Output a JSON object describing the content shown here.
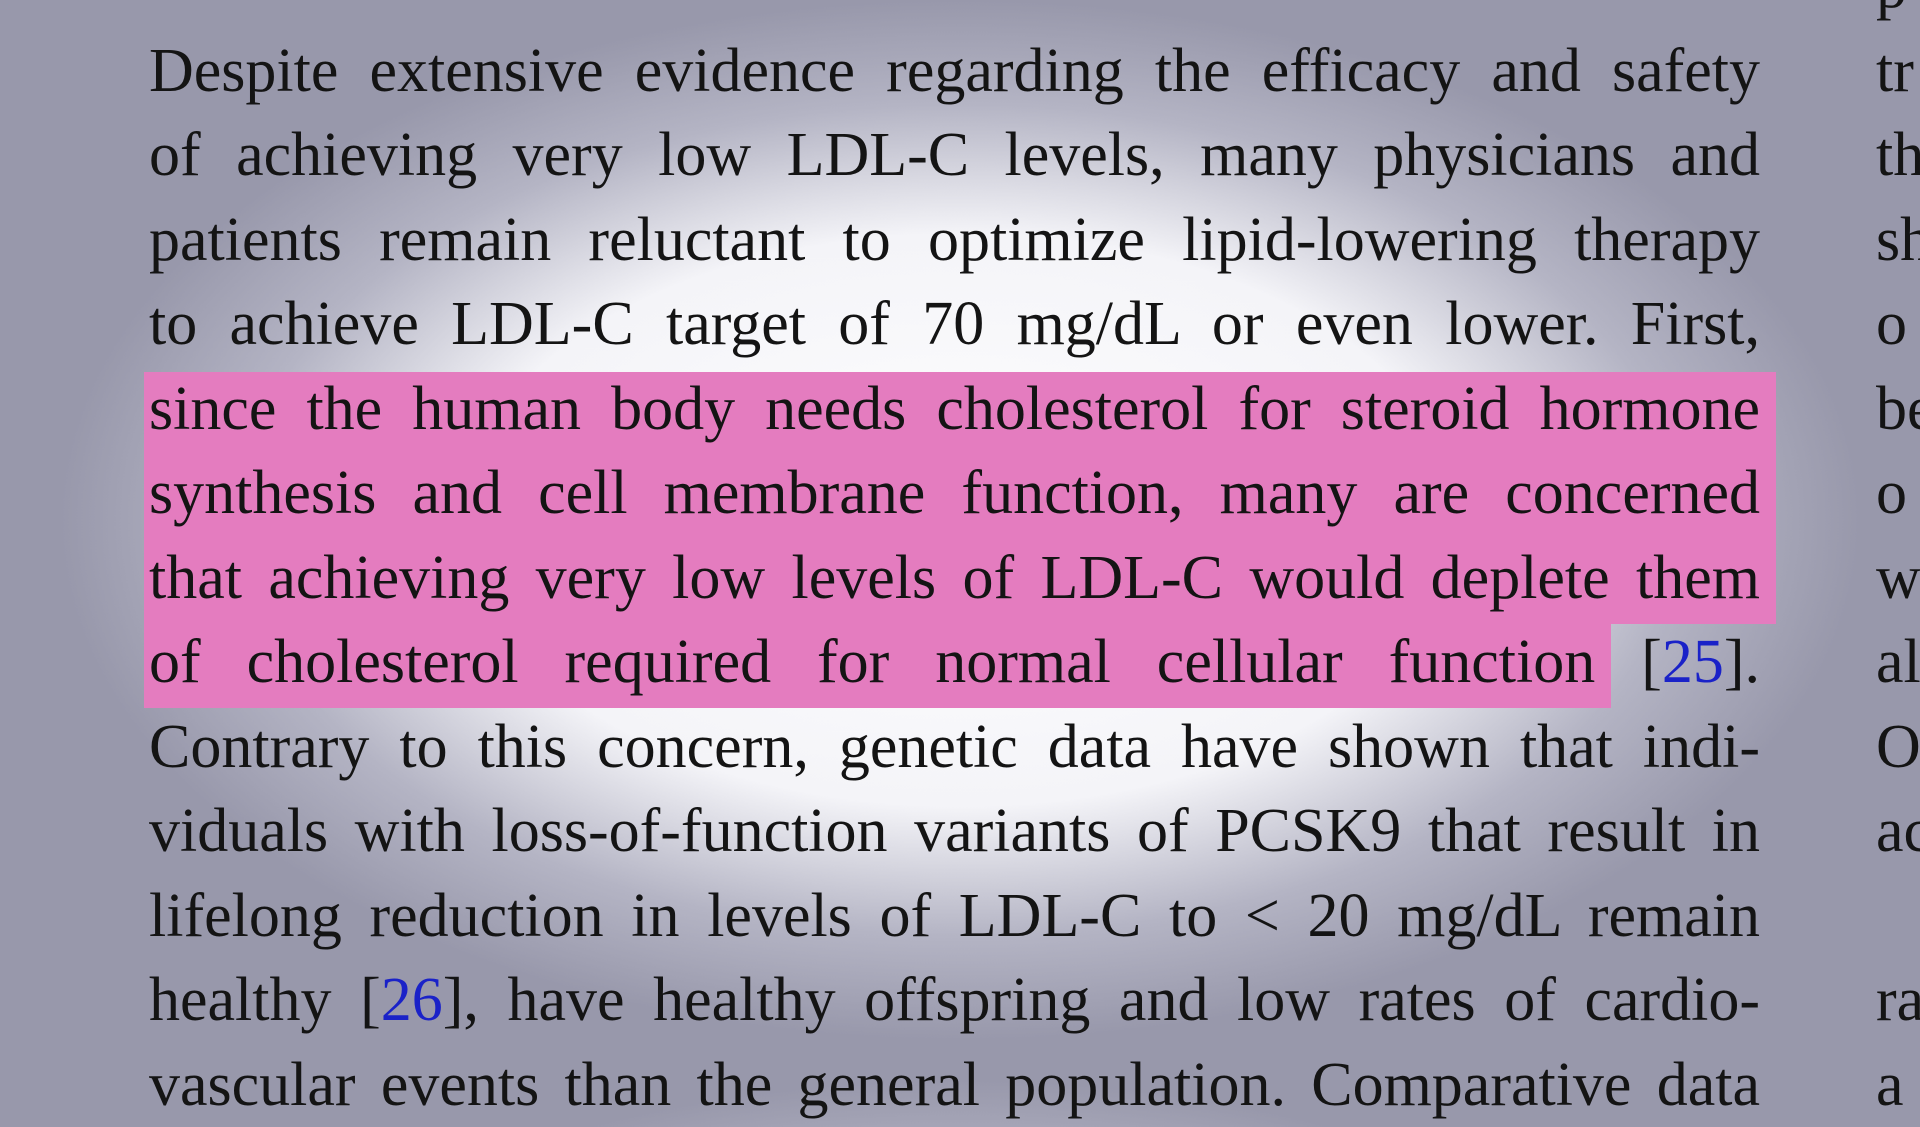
{
  "paragraph": {
    "lines": [
      "Despite extensive evidence regarding the efficacy and safety",
      "of achieving very low LDL-C levels, many physicians and",
      "patients remain reluctant to optimize lipid-lowering therapy",
      "to achieve LDL-C target of 70 mg/dL or even lower. First,",
      "since the human body needs cholesterol for steroid hormone",
      "synthesis and cell membrane function, many are concerned",
      "that achieving very low levels of LDL-C would deplete them",
      [
        "of cholesterol required for normal cellular function",
        "[",
        "25",
        "]."
      ],
      "Contrary to this concern, genetic data have shown that indi-",
      "viduals with loss-of-function variants of PCSK9 that result in",
      "lifelong reduction in levels of LDL-C to < 20 mg/dL remain",
      [
        "healthy",
        "[",
        "26",
        "], have healthy offspring and low rates of cardio-"
      ],
      "vascular events than the general population. Comparative data"
    ]
  },
  "right_column": [
    "p",
    "tr",
    "th",
    "sh",
    "o",
    "be",
    "o",
    "w",
    "al",
    "O",
    "ac",
    "ra",
    "a"
  ]
}
